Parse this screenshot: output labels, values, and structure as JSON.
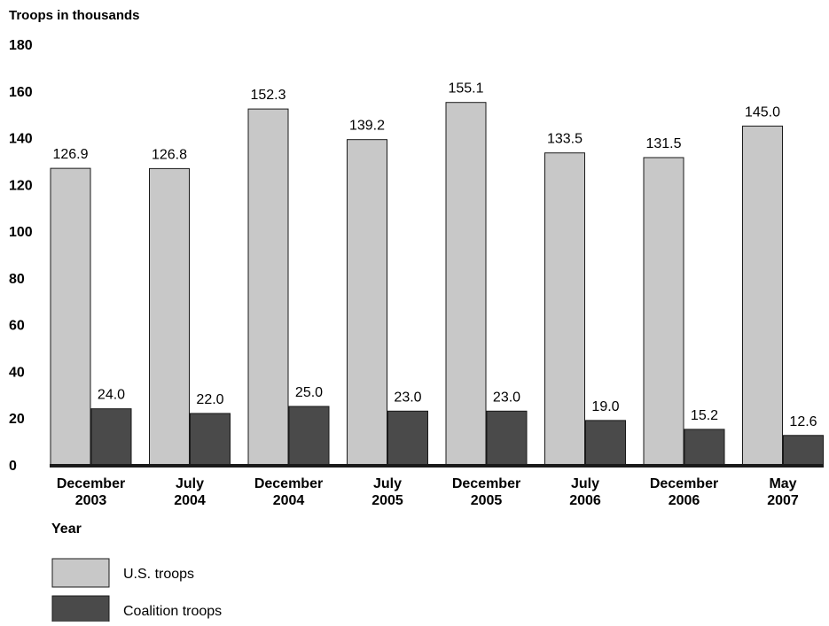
{
  "chart_data": {
    "type": "bar",
    "ylabel": "Troops in thousands",
    "xlabel": "Year",
    "ylim": [
      0,
      180
    ],
    "yticks": [
      "0",
      "20",
      "40",
      "60",
      "80",
      "100",
      "120",
      "140",
      "160",
      "180"
    ],
    "grid": false,
    "legend_placement": "bottom-left",
    "categories": [
      [
        "December",
        "2003"
      ],
      [
        "July",
        "2004"
      ],
      [
        "December",
        "2004"
      ],
      [
        "July",
        "2005"
      ],
      [
        "December",
        "2005"
      ],
      [
        "July",
        "2006"
      ],
      [
        "December",
        "2006"
      ],
      [
        "May",
        "2007"
      ]
    ],
    "series": [
      {
        "name": "U.S. troops",
        "color": "#c8c8c8",
        "values": [
          126.9,
          126.8,
          152.3,
          139.2,
          155.1,
          133.5,
          131.5,
          145.0
        ],
        "labels": [
          "126.9",
          "126.8",
          "152.3",
          "139.2",
          "155.1",
          "133.5",
          "131.5",
          "145.0"
        ]
      },
      {
        "name": "Coalition troops",
        "color": "#4a4a4a",
        "values": [
          24.0,
          22.0,
          25.0,
          23.0,
          23.0,
          19.0,
          15.2,
          12.6
        ],
        "labels": [
          "24.0",
          "22.0",
          "25.0",
          "23.0",
          "23.0",
          "19.0",
          "15.2",
          "12.6"
        ]
      }
    ]
  }
}
